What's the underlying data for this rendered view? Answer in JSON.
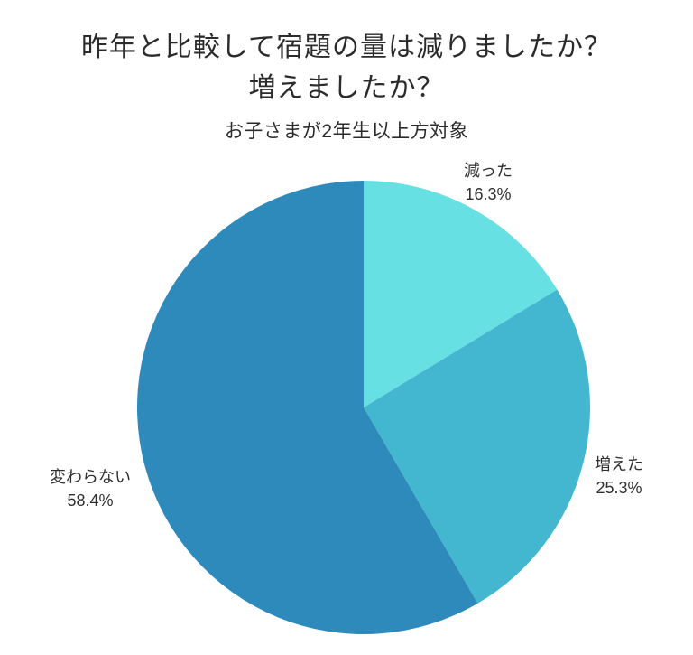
{
  "header": {
    "title_line1": "昨年と比較して宿題の量は減りましたか？",
    "title_line2": "増えましたか？",
    "subtitle": "お子さまが2年生以上方対象"
  },
  "chart_data": {
    "type": "pie",
    "title": "昨年と比較して宿題の量は減りましたか？増えましたか？",
    "subtitle": "お子さまが2年生以上方対象",
    "unit": "%",
    "start_angle": "top",
    "direction": "clockwise",
    "legend": false,
    "total": 100,
    "slices": [
      {
        "label": "減った",
        "value": 16.3,
        "pct_label": "16.3%",
        "color": "#67E0E3"
      },
      {
        "label": "増えた",
        "value": 25.3,
        "pct_label": "25.3%",
        "color": "#44B7D0"
      },
      {
        "label": "変わらない",
        "value": 58.4,
        "pct_label": "58.4%",
        "color": "#2E8ABA"
      }
    ]
  }
}
